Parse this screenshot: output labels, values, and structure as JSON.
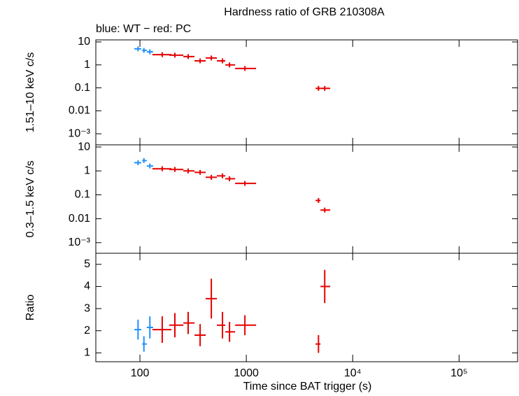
{
  "chart_data": [
    {
      "type": "scatter",
      "title": "Hardness ratio of GRB 210308A",
      "subtitle": "blue: WT − red: PC",
      "ylabel": "1.51–10 keV c/s",
      "log_x": true,
      "log_y": true,
      "xlim": [
        38.5,
        355000
      ],
      "ylim": [
        0.00033,
        12.3
      ],
      "yticks": [
        10,
        1,
        0.1,
        0.01,
        {
          "value": 0.001,
          "label": "10⁻³"
        }
      ],
      "series": [
        {
          "name": "WT",
          "color": "#1e90ff",
          "x": [
            96,
            109,
            124
          ],
          "x_min": [
            88.5,
            105,
            116
          ],
          "x_max": [
            103,
            116,
            133
          ],
          "values": [
            5.0,
            4.3,
            3.7
          ]
        },
        {
          "name": "PC",
          "color": "#e60000",
          "x": [
            162,
            213,
            284,
            368,
            469,
            597,
            695,
            970,
            4770,
            5460
          ],
          "x_min": [
            131,
            189,
            256,
            326,
            415,
            529,
            635,
            785,
            4480,
            4980
          ],
          "x_max": [
            198,
            256,
            326,
            415,
            529,
            635,
            785,
            1236,
            4980,
            6150
          ],
          "values": [
            2.8,
            2.65,
            2.3,
            1.5,
            2.0,
            1.5,
            1.0,
            0.7,
            0.095,
            0.095
          ]
        }
      ]
    },
    {
      "type": "scatter",
      "ylabel": "0.3–1.5 keV c/s",
      "log_x": true,
      "log_y": true,
      "xlim": [
        38.5,
        355000
      ],
      "ylim": [
        0.00036,
        12.3
      ],
      "yticks": [
        10,
        1,
        0.1,
        0.01,
        {
          "value": 0.001,
          "label": "10⁻³"
        }
      ],
      "series": [
        {
          "name": "WT",
          "color": "#1e90ff",
          "x": [
            96,
            109,
            124
          ],
          "x_min": [
            88.5,
            105,
            116
          ],
          "x_max": [
            103,
            116,
            133
          ],
          "values": [
            2.2,
            2.7,
            1.6
          ]
        },
        {
          "name": "PC",
          "color": "#e60000",
          "x": [
            162,
            213,
            284,
            368,
            469,
            597,
            695,
            970,
            4770,
            5460
          ],
          "x_min": [
            131,
            189,
            256,
            326,
            415,
            529,
            635,
            785,
            4480,
            4980
          ],
          "x_max": [
            198,
            256,
            326,
            415,
            529,
            635,
            785,
            1236,
            4980,
            6150
          ],
          "values": [
            1.23,
            1.15,
            1.0,
            0.87,
            0.54,
            0.62,
            0.47,
            0.3,
            0.058,
            0.023
          ]
        }
      ]
    },
    {
      "type": "scatter",
      "ylabel": "Ratio",
      "xlabel": "Time since BAT trigger (s)",
      "log_x": true,
      "log_y": false,
      "xlim": [
        38.5,
        355000
      ],
      "ylim": [
        0.6,
        5.5
      ],
      "xticks": [
        100,
        1000,
        {
          "value": 10000,
          "label": "10⁴"
        },
        {
          "value": 100000,
          "label": "10⁵"
        }
      ],
      "yticks": [
        1,
        2,
        3,
        4,
        5
      ],
      "series": [
        {
          "name": "WT",
          "color": "#1e90ff",
          "x": [
            96,
            109,
            124
          ],
          "x_min": [
            88.5,
            105,
            116
          ],
          "x_max": [
            103,
            116,
            133
          ],
          "values": [
            2.05,
            1.4,
            2.15
          ],
          "y_err": [
            0.45,
            0.35,
            0.5
          ]
        },
        {
          "name": "PC",
          "color": "#e60000",
          "x": [
            162,
            213,
            284,
            368,
            469,
            597,
            695,
            970,
            4770,
            5460
          ],
          "x_min": [
            131,
            189,
            256,
            326,
            415,
            529,
            635,
            785,
            4480,
            4980
          ],
          "x_max": [
            198,
            256,
            326,
            415,
            529,
            635,
            785,
            1236,
            4980,
            6150
          ],
          "values": [
            2.05,
            2.25,
            2.35,
            1.8,
            3.45,
            2.25,
            1.95,
            2.25,
            1.4,
            4.0
          ],
          "y_err": [
            0.6,
            0.55,
            0.5,
            0.5,
            0.9,
            0.6,
            0.45,
            0.45,
            0.4,
            0.75
          ]
        }
      ]
    }
  ]
}
